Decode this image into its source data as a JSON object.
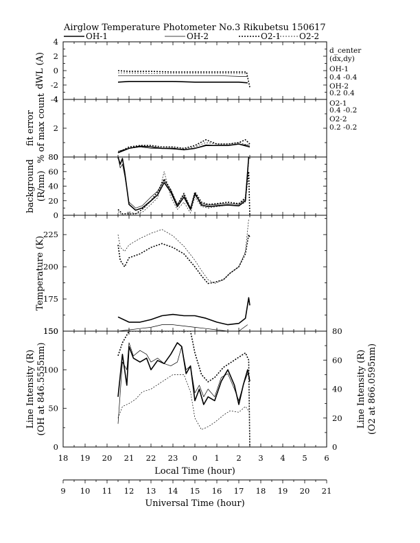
{
  "header": {
    "title": "Airglow Temperature Photometer No.3  Rikubetsu    150617"
  },
  "legend": {
    "items": [
      {
        "label": "OH-1",
        "style": "solid-thick"
      },
      {
        "label": "OH-2",
        "style": "solid-thin"
      },
      {
        "label": "O2-1",
        "style": "dotted-thick"
      },
      {
        "label": "O2-2",
        "style": "dotted-thin"
      }
    ]
  },
  "side_info": {
    "lines": [
      "d_center",
      "(dx,dy)",
      "OH-1",
      "0.4  -0.4",
      "OH-2",
      "0.2  0.4",
      "O2-1",
      "0.4  -0.2",
      "O2-2",
      "0.2  -0.2"
    ]
  },
  "chart_data": [
    {
      "type": "line",
      "panel": "dwl",
      "ylabel": "dWL (A)",
      "ylim": [
        -4,
        4
      ],
      "yticks": [
        -4,
        -2,
        0,
        2,
        4
      ],
      "xlim": [
        18,
        30
      ],
      "series": [
        {
          "name": "OH-1",
          "x": [
            20.5,
            21.0,
            21.5,
            22.0,
            23.0,
            24.0,
            25.0,
            26.0,
            26.4
          ],
          "y": [
            -1.6,
            -1.5,
            -1.5,
            -1.5,
            -1.5,
            -1.6,
            -1.6,
            -1.6,
            -1.7
          ]
        },
        {
          "name": "OH-2",
          "x": [
            20.5,
            21.0,
            22.0,
            23.0,
            24.0,
            25.0,
            26.0,
            26.4
          ],
          "y": [
            -0.7,
            -0.7,
            -0.7,
            -0.7,
            -0.7,
            -0.7,
            -0.8,
            -0.8
          ]
        },
        {
          "name": "O2-1",
          "x": [
            20.5,
            21.0,
            22.0,
            23.0,
            24.0,
            25.0,
            26.0,
            26.35,
            26.5
          ],
          "y": [
            0.0,
            -0.1,
            -0.1,
            -0.2,
            -0.2,
            -0.2,
            -0.2,
            -0.2,
            -2.3
          ]
        },
        {
          "name": "O2-2",
          "x": [
            20.5,
            21.0,
            22.0,
            23.0,
            24.0,
            25.0,
            26.0,
            26.4
          ],
          "y": [
            -0.3,
            -0.3,
            -0.4,
            -0.4,
            -0.4,
            -0.4,
            -0.4,
            -0.4
          ]
        }
      ]
    },
    {
      "type": "line",
      "panel": "fit_error",
      "ylabel": "fit error",
      "ylabel2": "% of max count",
      "ylim": [
        0,
        4
      ],
      "yticks": [
        0,
        2,
        4
      ],
      "xlim": [
        18,
        30
      ],
      "series": [
        {
          "name": "OH-1",
          "x": [
            20.5,
            21.0,
            21.5,
            22.0,
            22.5,
            23.0,
            23.5,
            24.0,
            24.5,
            25.0,
            25.5,
            26.0,
            26.5
          ],
          "y": [
            0.3,
            0.6,
            0.75,
            0.7,
            0.6,
            0.6,
            0.5,
            0.6,
            0.8,
            0.8,
            0.8,
            0.9,
            0.7
          ]
        },
        {
          "name": "OH-2",
          "x": [
            20.5,
            21.0,
            21.5,
            22.0,
            22.5,
            23.0,
            23.5,
            24.0,
            24.5,
            25.0,
            25.5,
            26.0,
            26.5
          ],
          "y": [
            0.4,
            0.6,
            0.7,
            0.6,
            0.6,
            0.55,
            0.5,
            0.6,
            0.85,
            0.8,
            0.8,
            0.9,
            0.8
          ]
        },
        {
          "name": "O2-1",
          "x": [
            20.5,
            21.0,
            21.5,
            22.0,
            22.5,
            23.0,
            23.5,
            24.0,
            24.5,
            25.0,
            25.5,
            26.0,
            26.3,
            26.5
          ],
          "y": [
            0.3,
            0.7,
            0.8,
            0.8,
            0.7,
            0.7,
            0.6,
            0.8,
            1.2,
            0.9,
            0.9,
            1.0,
            1.2,
            0.9
          ]
        },
        {
          "name": "O2-2",
          "x": [
            20.5,
            21.0,
            21.5,
            22.0,
            22.5,
            23.0,
            23.5,
            24.0,
            24.5,
            25.0,
            25.5,
            26.0,
            26.5
          ],
          "y": [
            0.3,
            0.6,
            0.7,
            0.7,
            0.6,
            0.6,
            0.55,
            0.7,
            1.0,
            0.9,
            0.9,
            1.0,
            0.8
          ]
        }
      ]
    },
    {
      "type": "line",
      "panel": "background",
      "ylabel": "background",
      "ylabel2": "(R/nm)",
      "ylim": [
        0,
        80
      ],
      "yticks": [
        0,
        20,
        40,
        60,
        80
      ],
      "xlim": [
        18,
        30
      ],
      "series": [
        {
          "name": "OH-1",
          "x": [
            20.5,
            20.6,
            20.7,
            20.8,
            21.0,
            21.3,
            21.6,
            22.0,
            22.3,
            22.6,
            22.9,
            23.2,
            23.5,
            23.8,
            24.0,
            24.3,
            24.6,
            25.0,
            25.5,
            26.0,
            26.3,
            26.45
          ],
          "y": [
            80,
            70,
            78,
            60,
            15,
            7,
            10,
            20,
            28,
            45,
            32,
            12,
            25,
            8,
            30,
            14,
            12,
            13,
            14,
            13,
            20,
            80
          ]
        },
        {
          "name": "OH-2",
          "x": [
            20.5,
            20.6,
            20.7,
            20.8,
            21.0,
            21.3,
            21.6,
            22.0,
            22.3,
            22.6,
            22.9,
            23.2,
            23.5,
            23.8,
            24.0,
            24.3,
            24.6,
            25.0,
            25.5,
            26.0,
            26.3,
            26.45
          ],
          "y": [
            80,
            65,
            70,
            55,
            18,
            10,
            13,
            25,
            33,
            48,
            35,
            15,
            28,
            10,
            28,
            16,
            14,
            15,
            16,
            15,
            22,
            80
          ]
        },
        {
          "name": "O2-1",
          "x": [
            20.5,
            20.7,
            21.0,
            21.3,
            21.6,
            22.0,
            22.3,
            22.6,
            22.9,
            23.2,
            23.5,
            23.8,
            24.0,
            24.3,
            24.6,
            25.0,
            25.5,
            26.0,
            26.3,
            26.45,
            26.5
          ],
          "y": [
            8,
            2,
            2,
            2,
            8,
            20,
            32,
            50,
            35,
            14,
            30,
            9,
            32,
            18,
            15,
            16,
            18,
            16,
            24,
            60,
            0
          ]
        },
        {
          "name": "O2-2",
          "x": [
            20.5,
            20.7,
            21.0,
            21.3,
            21.6,
            22.0,
            22.3,
            22.6,
            22.9,
            23.2,
            23.5,
            23.8,
            24.0,
            24.3,
            24.6,
            25.0,
            25.5,
            26.0,
            26.3,
            26.45
          ],
          "y": [
            5,
            0,
            5,
            2,
            4,
            15,
            24,
            60,
            25,
            8,
            18,
            3,
            25,
            12,
            10,
            12,
            14,
            13,
            18,
            73
          ]
        }
      ]
    },
    {
      "type": "line",
      "panel": "temperature",
      "ylabel": "Temperature (K)",
      "ylim": [
        150,
        240
      ],
      "yticks": [
        150,
        175,
        200,
        225
      ],
      "xlim": [
        18,
        30
      ],
      "series": [
        {
          "name": "OH-1",
          "x": [
            20.5,
            21.0,
            21.5,
            22.0,
            22.5,
            23.0,
            23.5,
            24.0,
            24.5,
            25.0,
            25.5,
            26.0,
            26.3,
            26.45,
            26.5
          ],
          "y": [
            161,
            157,
            157,
            159,
            162,
            163,
            162,
            162,
            160,
            157,
            155,
            156,
            160,
            176,
            170
          ]
        },
        {
          "name": "OH-2",
          "x": [
            20.5,
            21.0,
            21.5,
            22.0,
            22.5,
            23.0,
            23.5,
            24.0,
            24.5,
            25.0,
            25.5,
            26.0,
            26.4
          ],
          "y": [
            150,
            151,
            152,
            153,
            155,
            155,
            154,
            153,
            152,
            151,
            150,
            150,
            155
          ]
        },
        {
          "name": "O2-1",
          "x": [
            20.5,
            20.6,
            20.8,
            21.0,
            21.5,
            22.0,
            22.5,
            23.0,
            23.5,
            24.0,
            24.3,
            24.6,
            24.9,
            25.3,
            25.6,
            26.0,
            26.3,
            26.45,
            26.5
          ],
          "y": [
            217,
            205,
            200,
            207,
            210,
            215,
            218,
            215,
            210,
            200,
            193,
            187,
            188,
            190,
            195,
            200,
            210,
            225,
            223
          ]
        },
        {
          "name": "O2-2",
          "x": [
            20.5,
            20.6,
            20.8,
            21.0,
            21.5,
            22.0,
            22.5,
            23.0,
            23.5,
            24.0,
            24.3,
            24.6,
            24.9,
            25.3,
            25.6,
            26.0,
            26.3,
            26.45
          ],
          "y": [
            225,
            215,
            212,
            217,
            222,
            226,
            229,
            224,
            216,
            205,
            197,
            190,
            187,
            190,
            195,
            200,
            212,
            237
          ]
        }
      ]
    },
    {
      "type": "line",
      "panel": "intensity",
      "ylabel": "Line Intensity (R)",
      "ylabel2": "(OH at 846.5555nm)",
      "ylabel_right": "Line Intensity (R)",
      "ylabel_right2": "(O2 at 866.0595nm)",
      "ylim": [
        0,
        150
      ],
      "yticks": [
        0,
        50,
        100,
        150
      ],
      "ylim_right": [
        0,
        80
      ],
      "yticks_right": [
        0,
        20,
        40,
        60,
        80
      ],
      "xlim": [
        18,
        30
      ],
      "xticks_local": [
        "18",
        "19",
        "20",
        "21",
        "22",
        "23",
        "0",
        "1",
        "2",
        "3",
        "4",
        "5",
        "6"
      ],
      "xlabel": "Local Time (hour)",
      "xticks_ut": [
        "9",
        "10",
        "11",
        "12",
        "13",
        "14",
        "15",
        "16",
        "17",
        "18",
        "19",
        "20",
        "21"
      ],
      "xlabel2": "Universal Time (hour)",
      "series": [
        {
          "name": "OH-1",
          "axis": "left",
          "x": [
            20.5,
            20.7,
            20.9,
            21.0,
            21.2,
            21.5,
            21.8,
            22.0,
            22.3,
            22.6,
            22.9,
            23.2,
            23.4,
            23.6,
            23.8,
            24.0,
            24.2,
            24.4,
            24.6,
            24.9,
            25.2,
            25.5,
            25.8,
            26.0,
            26.2,
            26.4,
            26.5
          ],
          "y": [
            65,
            120,
            80,
            130,
            115,
            110,
            115,
            100,
            112,
            108,
            120,
            135,
            130,
            95,
            105,
            60,
            75,
            55,
            65,
            60,
            85,
            100,
            80,
            55,
            80,
            100,
            85
          ]
        },
        {
          "name": "OH-2",
          "axis": "left",
          "x": [
            20.5,
            20.7,
            20.9,
            21.0,
            21.2,
            21.5,
            21.8,
            22.0,
            22.3,
            22.6,
            22.9,
            23.2,
            23.4,
            23.6,
            23.8,
            24.0,
            24.2,
            24.4,
            24.6,
            24.9,
            25.2,
            25.5,
            25.8,
            26.0,
            26.2,
            26.4,
            26.5
          ],
          "y": [
            30,
            110,
            100,
            135,
            118,
            125,
            120,
            110,
            115,
            108,
            105,
            110,
            130,
            100,
            105,
            70,
            80,
            65,
            75,
            65,
            90,
            95,
            75,
            60,
            80,
            95,
            90
          ]
        },
        {
          "name": "O2-1",
          "axis": "right",
          "x": [
            20.5,
            20.7,
            21.0,
            21.3,
            21.6,
            22.0,
            22.5,
            23.0,
            23.5,
            23.8,
            24.0,
            24.3,
            24.6,
            24.9,
            25.3,
            25.6,
            26.0,
            26.3,
            26.45,
            26.5
          ],
          "y": [
            63,
            72,
            80,
            80,
            80,
            80,
            80,
            80,
            80,
            80,
            65,
            50,
            45,
            48,
            55,
            58,
            62,
            65,
            60,
            0
          ]
        },
        {
          "name": "O2-2",
          "axis": "right",
          "x": [
            20.5,
            20.7,
            21.0,
            21.3,
            21.6,
            22.0,
            22.5,
            23.0,
            23.5,
            23.8,
            24.0,
            24.3,
            24.6,
            24.9,
            25.3,
            25.6,
            26.0,
            26.3,
            26.45
          ],
          "y": [
            20,
            28,
            30,
            33,
            38,
            40,
            45,
            50,
            50,
            38,
            20,
            12,
            14,
            17,
            22,
            25,
            24,
            28,
            25
          ]
        }
      ]
    }
  ]
}
